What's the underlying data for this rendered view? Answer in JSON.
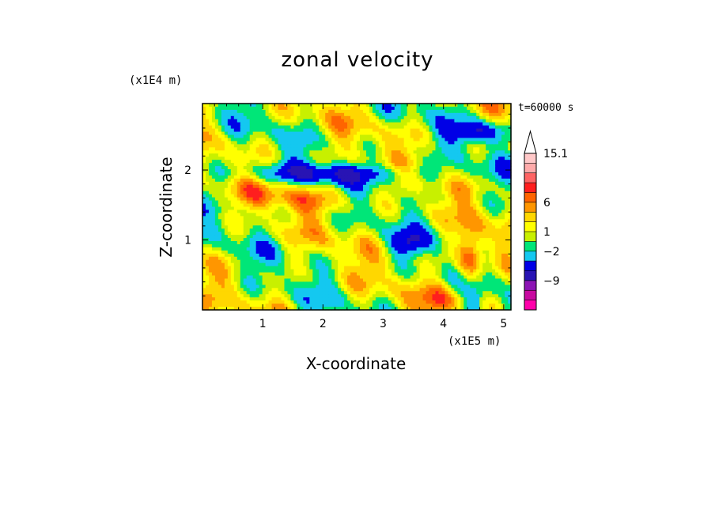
{
  "chart_data": {
    "type": "heatmap",
    "title": "zonal velocity",
    "xlabel": "X-coordinate",
    "ylabel": "Z-coordinate",
    "x_scale_label": "(x1E5 m)",
    "z_scale_label": "(x1E4 m)",
    "time_label": "t=60000 s",
    "xlim": [
      0,
      5.12
    ],
    "ylim": [
      0,
      2.95
    ],
    "x_ticks": [
      "1",
      "2",
      "3",
      "4",
      "5"
    ],
    "x_tick_values": [
      1,
      2,
      3,
      4,
      5
    ],
    "y_ticks": [
      "1",
      "2"
    ],
    "y_tick_values": [
      1,
      2
    ],
    "colorbar": {
      "labels": [
        {
          "text": "15.1",
          "level": 15.1
        },
        {
          "text": "6",
          "level": 6
        },
        {
          "text": "1",
          "level": 1
        },
        {
          "text": "−2",
          "level": -2
        },
        {
          "text": "−9",
          "level": -9
        }
      ],
      "colors": [
        "#ff00aa",
        "#c80aa0",
        "#8c14b4",
        "#2814b4",
        "#0000e6",
        "#14c8f0",
        "#00e678",
        "#c8f000",
        "#ffff00",
        "#ffd700",
        "#ff9600",
        "#ff6400",
        "#ff1e1e",
        "#ff6464",
        "#ffaaaa",
        "#ffc8c8"
      ]
    }
  }
}
